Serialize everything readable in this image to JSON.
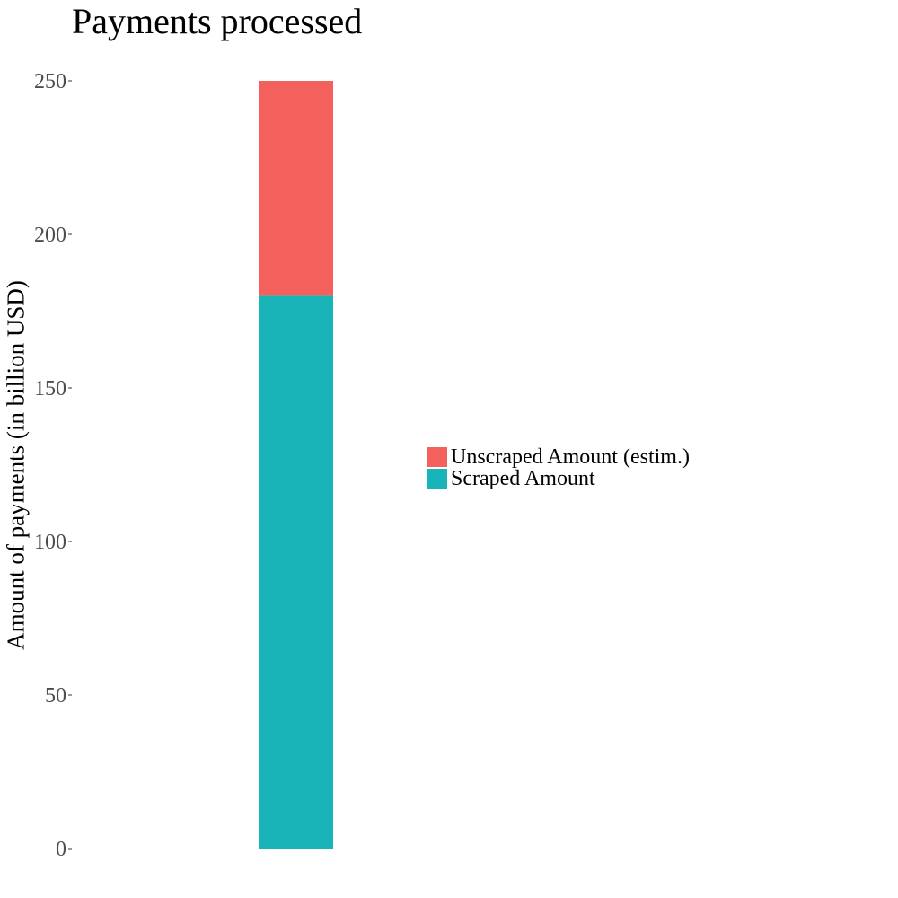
{
  "chart_data": {
    "type": "bar",
    "stacked": true,
    "title": "Payments processed",
    "xlabel": "",
    "ylabel": "Amount of payments (in billion USD)",
    "ylim": [
      0,
      250
    ],
    "yticks": [
      "0",
      "50",
      "100",
      "150",
      "200",
      "250"
    ],
    "categories": [
      ""
    ],
    "series": [
      {
        "name": "Scraped Amount",
        "values": [
          180
        ],
        "color": "#19B4B8"
      },
      {
        "name": "Unscraped Amount (estim.)",
        "values": [
          70
        ],
        "color": "#F4615C"
      }
    ],
    "legend": {
      "placement": "right",
      "items": [
        "Unscraped Amount (estim.)",
        "Scraped Amount"
      ]
    },
    "grid": false
  }
}
